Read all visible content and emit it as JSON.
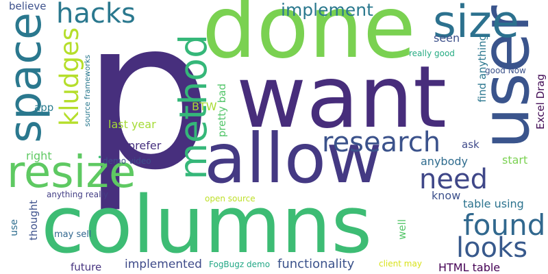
{
  "words": [
    {
      "id": "p",
      "text": "p",
      "color": "#472f7d"
    },
    {
      "id": "done",
      "text": "done",
      "color": "#7ad151"
    },
    {
      "id": "want",
      "text": "want",
      "color": "#472d7b"
    },
    {
      "id": "columns",
      "text": "columns",
      "color": "#3dbc74"
    },
    {
      "id": "allow",
      "text": "allow",
      "color": "#443983"
    },
    {
      "id": "user",
      "text": "user",
      "color": "#3a548c"
    },
    {
      "id": "size",
      "text": "size",
      "color": "#2c718e"
    },
    {
      "id": "space",
      "text": "space",
      "color": "#2a788e"
    },
    {
      "id": "resize",
      "text": "resize",
      "color": "#5ec962"
    },
    {
      "id": "method",
      "text": "method",
      "color": "#35b779"
    },
    {
      "id": "research",
      "text": "research",
      "color": "#3b528b"
    },
    {
      "id": "hacks",
      "text": "hacks",
      "color": "#2a788e"
    },
    {
      "id": "kludges",
      "text": "kludges",
      "color": "#b5de2b"
    },
    {
      "id": "found",
      "text": "found",
      "color": "#31688e"
    },
    {
      "id": "looks",
      "text": "looks",
      "color": "#38598c"
    },
    {
      "id": "need",
      "text": "need",
      "color": "#3f4788"
    },
    {
      "id": "implement",
      "text": "implement",
      "color": "#2a788e"
    },
    {
      "id": "functionality",
      "text": "functionality",
      "color": "#3b528b"
    },
    {
      "id": "implemented",
      "text": "implemented",
      "color": "#3e4a89"
    },
    {
      "id": "html-table",
      "text": "HTML table",
      "color": "#440154"
    },
    {
      "id": "excel-drag",
      "text": "Excel Drag",
      "color": "#3e0751"
    },
    {
      "id": "table-using",
      "text": "table using",
      "color": "#2c738e"
    },
    {
      "id": "find-anything",
      "text": "find anything",
      "color": "#2a768e"
    },
    {
      "id": "last-year",
      "text": "last year",
      "color": "#a5db36"
    },
    {
      "id": "prefer",
      "text": "prefer",
      "color": "#46307e"
    },
    {
      "id": "pretty-bad",
      "text": "pretty bad",
      "color": "#52c569"
    },
    {
      "id": "anybody",
      "text": "anybody",
      "color": "#2f6c8e"
    },
    {
      "id": "start",
      "text": "start",
      "color": "#7ad151"
    },
    {
      "id": "know",
      "text": "know",
      "color": "#3c508b"
    },
    {
      "id": "well",
      "text": "well",
      "color": "#54c568"
    },
    {
      "id": "ask",
      "text": "ask",
      "color": "#3e4989"
    },
    {
      "id": "btw",
      "text": "BTW",
      "color": "#a8db34"
    },
    {
      "id": "seen",
      "text": "seen",
      "color": "#3c4f8a"
    },
    {
      "id": "right",
      "text": "right",
      "color": "#5ec962"
    },
    {
      "id": "app",
      "text": "app",
      "color": "#297b8e"
    },
    {
      "id": "believe",
      "text": "believe",
      "color": "#3c508b"
    },
    {
      "id": "use",
      "text": "use",
      "color": "#2e6d8e"
    },
    {
      "id": "thought",
      "text": "thought",
      "color": "#3c508b"
    },
    {
      "id": "future",
      "text": "future",
      "color": "#46337f"
    },
    {
      "id": "may-sell",
      "text": "may sell",
      "color": "#31668e"
    },
    {
      "id": "anything-really",
      "text": "anything really",
      "color": "#433e85"
    },
    {
      "id": "demo-video",
      "text": "demo video",
      "color": "#3d4d8a"
    },
    {
      "id": "open-source",
      "text": "open source",
      "color": "#bddf26"
    },
    {
      "id": "fogbugz-demo",
      "text": "FogBugz demo",
      "color": "#22a785"
    },
    {
      "id": "client-may",
      "text": "client may",
      "color": "#d8e219"
    },
    {
      "id": "really-good",
      "text": "really good",
      "color": "#25ab82"
    },
    {
      "id": "good-now",
      "text": "good Now",
      "color": "#3b528b"
    },
    {
      "id": "source-frameworks",
      "text": "source frameworks",
      "color": "#2a788e"
    },
    {
      "id": "dot",
      "text": "•",
      "color": "#3dbc74"
    }
  ]
}
